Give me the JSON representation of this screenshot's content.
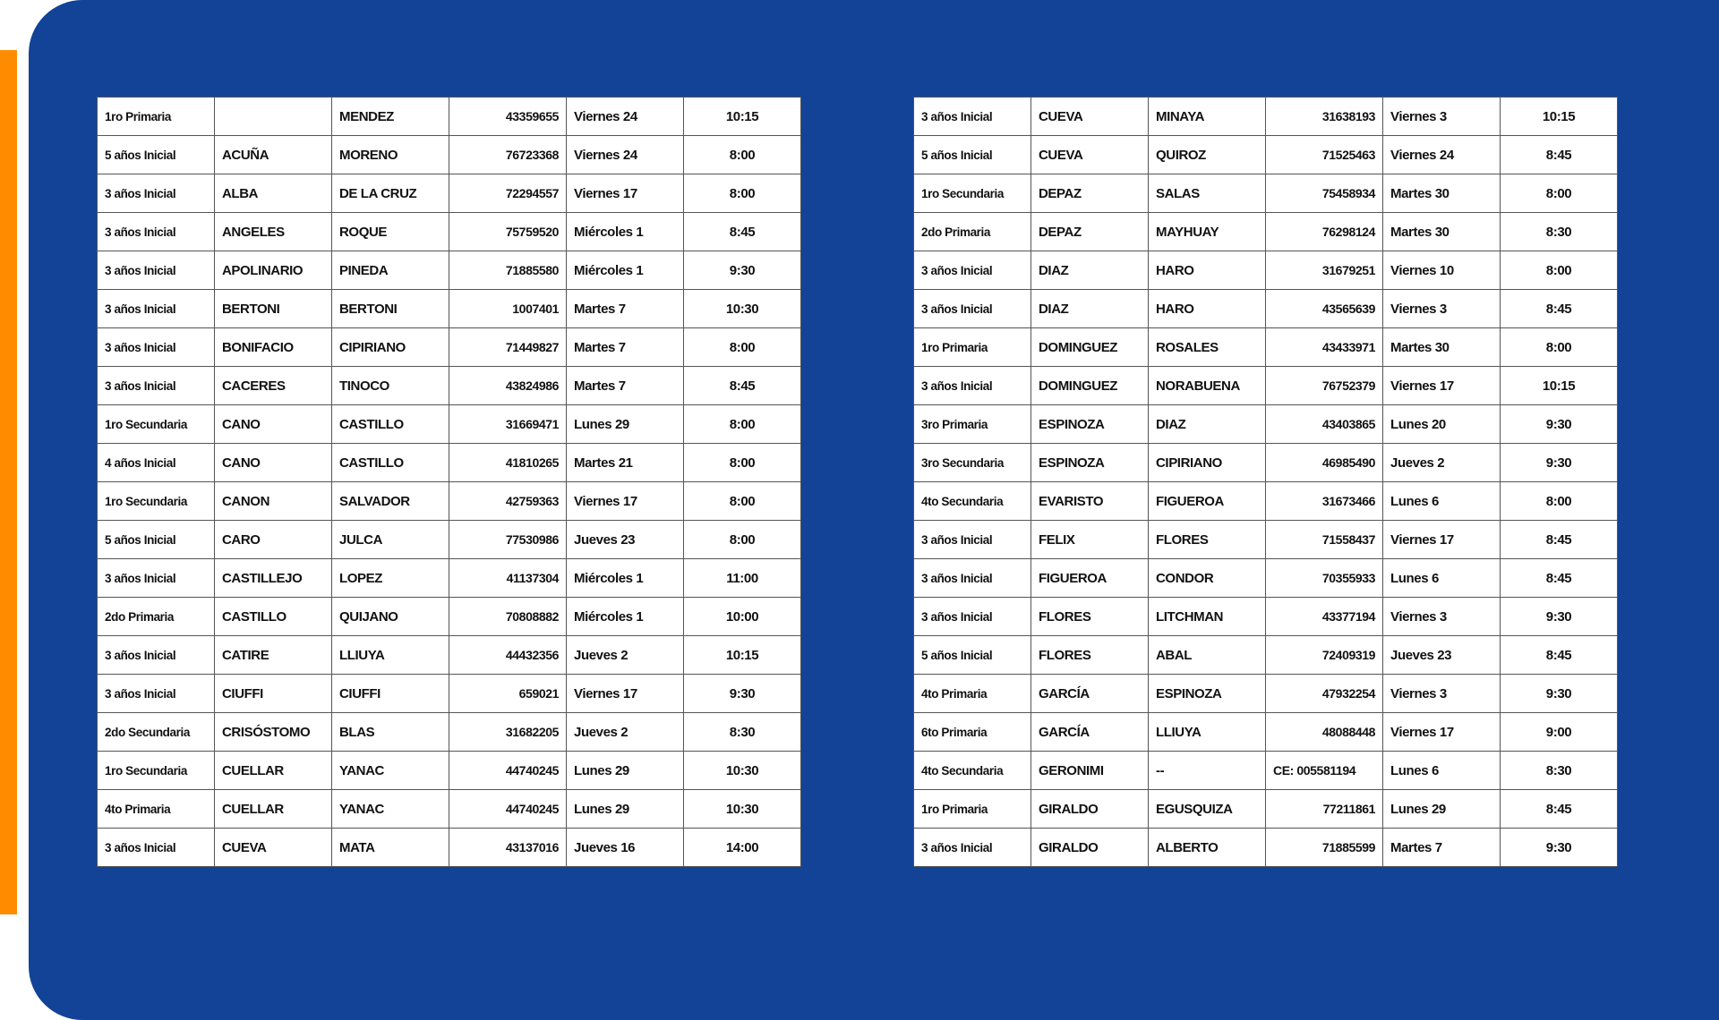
{
  "colors": {
    "panel": "#124397",
    "accent_bar": "#ff8c00"
  },
  "tables": [
    {
      "rows": [
        [
          "1ro Primaria",
          "",
          "MENDEZ",
          "43359655",
          "Viernes 24",
          "10:15"
        ],
        [
          "5 años Inicial",
          "ACUÑA",
          "MORENO",
          "76723368",
          "Viernes 24",
          "8:00"
        ],
        [
          "3 años Inicial",
          "ALBA",
          "DE LA CRUZ",
          "72294557",
          "Viernes 17",
          "8:00"
        ],
        [
          "3 años Inicial",
          "ANGELES",
          "ROQUE",
          "75759520",
          "Miércoles 1",
          "8:45"
        ],
        [
          "3 años Inicial",
          "APOLINARIO",
          "PINEDA",
          "71885580",
          "Miércoles 1",
          "9:30"
        ],
        [
          "3 años Inicial",
          "BERTONI",
          "BERTONI",
          "1007401",
          "Martes 7",
          "10:30"
        ],
        [
          "3 años Inicial",
          "BONIFACIO",
          "CIPIRIANO",
          "71449827",
          "Martes 7",
          "8:00"
        ],
        [
          "3 años Inicial",
          "CACERES",
          "TINOCO",
          "43824986",
          "Martes 7",
          "8:45"
        ],
        [
          "1ro Secundaria",
          "CANO",
          "CASTILLO",
          "31669471",
          "Lunes 29",
          "8:00"
        ],
        [
          "4 años Inicial",
          "CANO",
          "CASTILLO",
          "41810265",
          "Martes 21",
          "8:00"
        ],
        [
          "1ro Secundaria",
          "CANON",
          "SALVADOR",
          "42759363",
          "Viernes 17",
          "8:00"
        ],
        [
          "5 años Inicial",
          "CARO",
          "JULCA",
          "77530986",
          "Jueves 23",
          "8:00"
        ],
        [
          "3 años Inicial",
          "CASTILLEJO",
          "LOPEZ",
          "41137304",
          "Miércoles 1",
          "11:00"
        ],
        [
          "2do Primaria",
          "CASTILLO",
          "QUIJANO",
          "70808882",
          "Miércoles 1",
          "10:00"
        ],
        [
          "3 años Inicial",
          "CATIRE",
          "LLIUYA",
          "44432356",
          "Jueves 2",
          "10:15"
        ],
        [
          "3 años Inicial",
          "CIUFFI",
          "CIUFFI",
          "659021",
          "Viernes 17",
          "9:30"
        ],
        [
          "2do Secundaria",
          "CRISÓSTOMO",
          "BLAS",
          "31682205",
          "Jueves 2",
          "8:30"
        ],
        [
          "1ro Secundaria",
          "CUELLAR",
          "YANAC",
          "44740245",
          "Lunes 29",
          "10:30"
        ],
        [
          "4to Primaria",
          "CUELLAR",
          "YANAC",
          "44740245",
          "Lunes 29",
          "10:30"
        ],
        [
          "3 años Inicial",
          "CUEVA",
          "MATA",
          "43137016",
          "Jueves 16",
          "14:00"
        ]
      ]
    },
    {
      "rows": [
        [
          "3 años Inicial",
          "CUEVA",
          "MINAYA",
          "31638193",
          "Viernes 3",
          "10:15"
        ],
        [
          "5 años Inicial",
          "CUEVA",
          "QUIROZ",
          "71525463",
          "Viernes 24",
          "8:45"
        ],
        [
          "1ro Secundaria",
          "DEPAZ",
          "SALAS",
          "75458934",
          "Martes 30",
          "8:00"
        ],
        [
          "2do Primaria",
          "DEPAZ",
          "MAYHUAY",
          "76298124",
          "Martes 30",
          "8:30"
        ],
        [
          "3 años Inicial",
          "DIAZ",
          "HARO",
          "31679251",
          "Viernes 10",
          "8:00"
        ],
        [
          "3 años Inicial",
          "DIAZ",
          "HARO",
          "43565639",
          "Viernes 3",
          "8:45"
        ],
        [
          "1ro Primaria",
          "DOMINGUEZ",
          "ROSALES",
          "43433971",
          "Martes 30",
          "8:00"
        ],
        [
          "3 años Inicial",
          "DOMINGUEZ",
          "NORABUENA",
          "76752379",
          "Viernes 17",
          "10:15"
        ],
        [
          "3ro Primaria",
          "ESPINOZA",
          "DIAZ",
          "43403865",
          "Lunes 20",
          "9:30"
        ],
        [
          "3ro Secundaria",
          "ESPINOZA",
          "CIPIRIANO",
          "46985490",
          "Jueves 2",
          "9:30"
        ],
        [
          "4to Secundaria",
          "EVARISTO",
          "FIGUEROA",
          "31673466",
          "Lunes 6",
          "8:00"
        ],
        [
          "3 años Inicial",
          "FELIX",
          "FLORES",
          "71558437",
          "Viernes 17",
          "8:45"
        ],
        [
          "3 años Inicial",
          "FIGUEROA",
          "CONDOR",
          "70355933",
          "Lunes 6",
          "8:45"
        ],
        [
          "3 años Inicial",
          "FLORES",
          "LITCHMAN",
          "43377194",
          "Viernes 3",
          "9:30"
        ],
        [
          "5 años Inicial",
          "FLORES",
          "ABAL",
          "72409319",
          "Jueves 23",
          "8:45"
        ],
        [
          "4to Primaria",
          "GARCÍA",
          "ESPINOZA",
          "47932254",
          "Viernes 3",
          "9:30"
        ],
        [
          "6to Primaria",
          "GARCÍA",
          "LLIUYA",
          "48088448",
          "Viernes 17",
          "9:00"
        ],
        [
          "4to Secundaria",
          "GERONIMI",
          "--",
          "CE: 005581194",
          "Lunes 6",
          "8:30"
        ],
        [
          "1ro Primaria",
          "GIRALDO",
          "EGUSQUIZA",
          "77211861",
          "Lunes 29",
          "8:45"
        ],
        [
          "3 años Inicial",
          "GIRALDO",
          "ALBERTO",
          "71885599",
          "Martes 7",
          "9:30"
        ]
      ]
    }
  ]
}
